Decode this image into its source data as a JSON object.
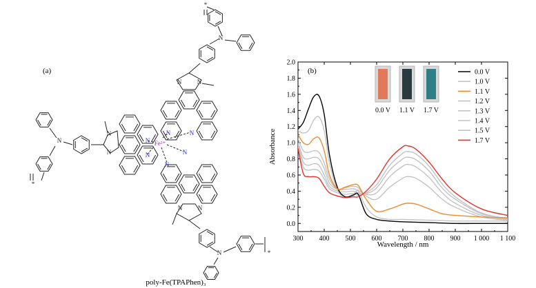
{
  "panel_a": {
    "label": "(a)",
    "compound": "poly-Fe(TPAPhen)₃",
    "metal_label": "Fe²⁺",
    "atom_N": "N",
    "methyl_label": "N",
    "polymer_end": "*",
    "colors": {
      "bond": "#222222",
      "nitrogen": "#2b2bd6",
      "metal": "#9c2aa8"
    }
  },
  "chart_data": {
    "type": "line",
    "panel_label": "(b)",
    "xlabel": "Wavelength / nm",
    "ylabel": "Absorbance",
    "xlim": [
      300,
      1100
    ],
    "ylim": [
      -0.1,
      2.0
    ],
    "xticks": [
      300,
      400,
      500,
      600,
      700,
      800,
      900,
      1000,
      1100
    ],
    "xtick_labels": [
      "300",
      "400",
      "500",
      "600",
      "700",
      "800",
      "900",
      "1 000",
      "1 100"
    ],
    "yticks": [
      0.0,
      0.2,
      0.4,
      0.6,
      0.8,
      1.0,
      1.2,
      1.4,
      1.6,
      1.8,
      2.0
    ],
    "ytick_labels": [
      "0.0",
      "0.2",
      "0.4",
      "0.6",
      "0.8",
      "1.0",
      "1.2",
      "1.4",
      "1.6",
      "1.8",
      "2.0"
    ],
    "grid": false,
    "legend_position": "top-right",
    "inset_photos": [
      {
        "label": "0.0 V",
        "color": "#e07a5a"
      },
      {
        "label": "1.1 V",
        "color": "#2a3a3e"
      },
      {
        "label": "1.7 V",
        "color": "#2f7f86"
      }
    ],
    "series": [
      {
        "name": "0.0 V",
        "color": "#000000",
        "x": [
          300,
          320,
          340,
          360,
          380,
          400,
          420,
          450,
          480,
          510,
          530,
          560,
          600,
          650,
          700,
          800,
          900,
          1000,
          1100
        ],
        "y": [
          1.17,
          1.25,
          1.42,
          1.57,
          1.58,
          1.35,
          0.85,
          0.45,
          0.33,
          0.35,
          0.36,
          0.12,
          0.05,
          0.03,
          0.02,
          0.01,
          0.0,
          0.0,
          0.0
        ]
      },
      {
        "name": "1.0 V",
        "color": "#c3c3c3",
        "x": [
          300,
          320,
          340,
          360,
          380,
          400,
          420,
          450,
          480,
          510,
          530,
          560,
          600,
          650,
          700,
          800,
          900,
          1000,
          1100
        ],
        "y": [
          1.15,
          1.12,
          1.15,
          1.28,
          1.32,
          1.15,
          0.75,
          0.42,
          0.32,
          0.36,
          0.4,
          0.2,
          0.08,
          0.05,
          0.05,
          0.04,
          0.03,
          0.03,
          0.03
        ]
      },
      {
        "name": "1.1 V",
        "color": "#f08a2a",
        "x": [
          300,
          320,
          340,
          360,
          380,
          400,
          420,
          450,
          480,
          510,
          530,
          560,
          600,
          650,
          700,
          720,
          750,
          800,
          850,
          900,
          1000,
          1100
        ],
        "y": [
          1.1,
          1.0,
          0.98,
          1.05,
          1.06,
          0.9,
          0.6,
          0.43,
          0.45,
          0.48,
          0.47,
          0.3,
          0.15,
          0.18,
          0.24,
          0.25,
          0.24,
          0.18,
          0.12,
          0.1,
          0.08,
          0.07
        ]
      },
      {
        "name": "1.2 V",
        "color": "#c3c3c3",
        "x": [
          300,
          320,
          340,
          360,
          380,
          400,
          420,
          450,
          480,
          510,
          530,
          560,
          600,
          650,
          700,
          720,
          750,
          800,
          850,
          900,
          1000,
          1100
        ],
        "y": [
          1.05,
          0.9,
          0.88,
          0.9,
          0.88,
          0.75,
          0.55,
          0.42,
          0.44,
          0.46,
          0.44,
          0.34,
          0.3,
          0.45,
          0.56,
          0.58,
          0.56,
          0.45,
          0.3,
          0.2,
          0.08,
          0.04
        ]
      },
      {
        "name": "1.3 V",
        "color": "#c3c3c3",
        "x": [
          300,
          320,
          340,
          360,
          380,
          400,
          420,
          450,
          480,
          510,
          530,
          560,
          600,
          650,
          700,
          720,
          750,
          800,
          850,
          900,
          1000,
          1100
        ],
        "y": [
          1.0,
          0.82,
          0.8,
          0.82,
          0.8,
          0.68,
          0.5,
          0.42,
          0.42,
          0.43,
          0.41,
          0.36,
          0.38,
          0.58,
          0.71,
          0.73,
          0.7,
          0.57,
          0.38,
          0.25,
          0.1,
          0.05
        ]
      },
      {
        "name": "1.4 V",
        "color": "#c3c3c3",
        "x": [
          300,
          320,
          340,
          360,
          380,
          400,
          420,
          450,
          480,
          510,
          530,
          560,
          600,
          650,
          700,
          720,
          750,
          800,
          850,
          900,
          1000,
          1100
        ],
        "y": [
          0.98,
          0.76,
          0.72,
          0.74,
          0.72,
          0.6,
          0.46,
          0.4,
          0.39,
          0.4,
          0.38,
          0.37,
          0.44,
          0.66,
          0.8,
          0.82,
          0.79,
          0.65,
          0.44,
          0.3,
          0.12,
          0.06
        ]
      },
      {
        "name": "1.5 V",
        "color": "#c3c3c3",
        "x": [
          300,
          320,
          340,
          360,
          380,
          400,
          420,
          450,
          480,
          510,
          530,
          560,
          600,
          650,
          700,
          720,
          750,
          800,
          850,
          900,
          1000,
          1100
        ],
        "y": [
          0.95,
          0.7,
          0.66,
          0.67,
          0.65,
          0.55,
          0.43,
          0.38,
          0.36,
          0.37,
          0.35,
          0.38,
          0.48,
          0.72,
          0.87,
          0.89,
          0.86,
          0.71,
          0.49,
          0.33,
          0.13,
          0.06
        ]
      },
      {
        "name": "1.7 V",
        "color": "#e8302a",
        "x": [
          300,
          320,
          340,
          360,
          380,
          400,
          420,
          450,
          480,
          510,
          530,
          560,
          600,
          650,
          700,
          720,
          750,
          800,
          850,
          900,
          1000,
          1100
        ],
        "y": [
          0.93,
          0.62,
          0.58,
          0.58,
          0.56,
          0.46,
          0.38,
          0.34,
          0.32,
          0.33,
          0.33,
          0.4,
          0.55,
          0.8,
          0.95,
          0.96,
          0.92,
          0.76,
          0.55,
          0.38,
          0.18,
          0.1
        ]
      }
    ]
  }
}
